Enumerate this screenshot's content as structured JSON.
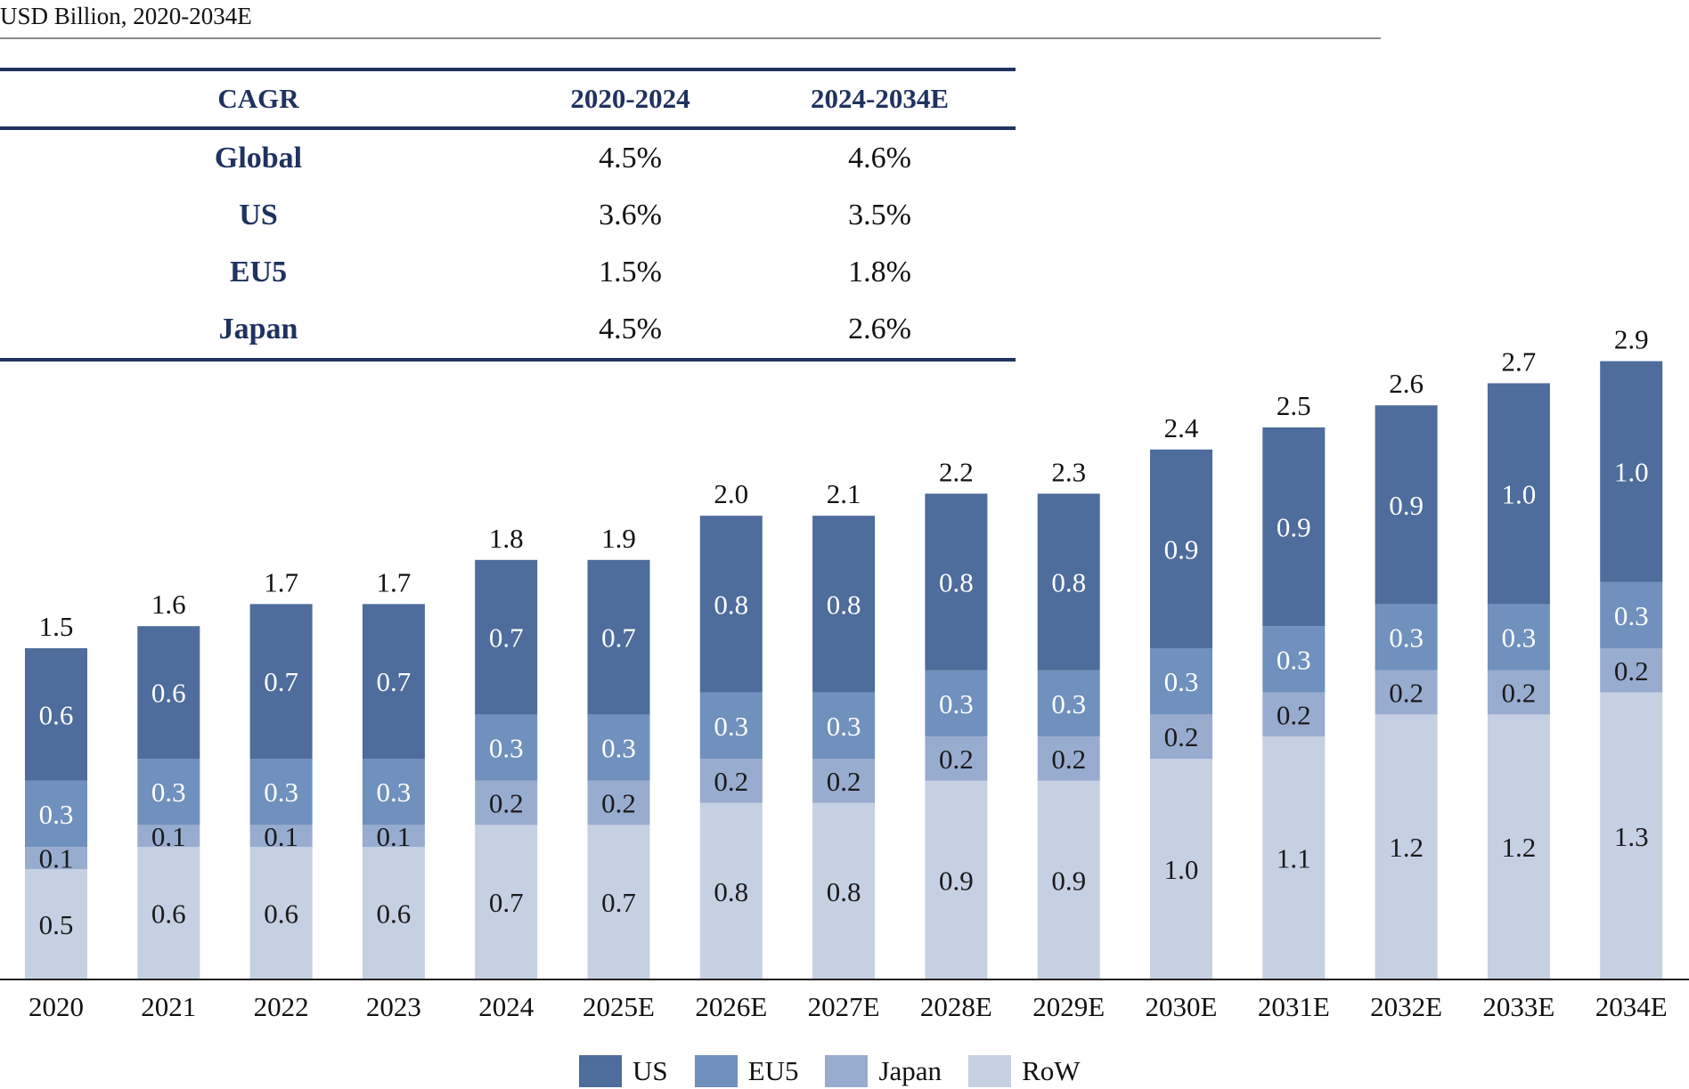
{
  "subtitle": "USD Billion, 2020-2034E",
  "cagr_table": {
    "headers": [
      "CAGR",
      "2020-2024",
      "2024-2034E"
    ],
    "rows": [
      {
        "label": "Global",
        "v1": "4.5%",
        "v2": "4.6%"
      },
      {
        "label": "US",
        "v1": "3.6%",
        "v2": "3.5%"
      },
      {
        "label": "EU5",
        "v1": "1.5%",
        "v2": "1.8%"
      },
      {
        "label": "Japan",
        "v1": "4.5%",
        "v2": "2.6%"
      }
    ]
  },
  "colors": {
    "US": "#4e6c9c",
    "EU5": "#7090bd",
    "Japan": "#98acd0",
    "RoW": "#c5d0e3",
    "table_accent": "#1f3260"
  },
  "chart_data": {
    "type": "bar",
    "stacked": true,
    "categories": [
      "2020",
      "2021",
      "2022",
      "2023",
      "2024",
      "2025E",
      "2026E",
      "2027E",
      "2028E",
      "2029E",
      "2030E",
      "2031E",
      "2032E",
      "2033E",
      "2034E"
    ],
    "series": [
      {
        "name": "RoW",
        "values": [
          0.5,
          0.6,
          0.6,
          0.6,
          0.7,
          0.7,
          0.8,
          0.8,
          0.9,
          0.9,
          1.0,
          1.1,
          1.2,
          1.2,
          1.3
        ]
      },
      {
        "name": "Japan",
        "values": [
          0.1,
          0.1,
          0.1,
          0.1,
          0.2,
          0.2,
          0.2,
          0.2,
          0.2,
          0.2,
          0.2,
          0.2,
          0.2,
          0.2,
          0.2
        ]
      },
      {
        "name": "EU5",
        "values": [
          0.3,
          0.3,
          0.3,
          0.3,
          0.3,
          0.3,
          0.3,
          0.3,
          0.3,
          0.3,
          0.3,
          0.3,
          0.3,
          0.3,
          0.3
        ]
      },
      {
        "name": "US",
        "values": [
          0.6,
          0.6,
          0.7,
          0.7,
          0.7,
          0.7,
          0.8,
          0.8,
          0.8,
          0.8,
          0.9,
          0.9,
          0.9,
          1.0,
          1.0
        ]
      }
    ],
    "totals": [
      "1.5",
      "1.6",
      "1.7",
      "1.7",
      "1.8",
      "1.9",
      "2.0",
      "2.1",
      "2.2",
      "2.3",
      "2.4",
      "2.5",
      "2.6",
      "2.7",
      "2.9"
    ],
    "legend": [
      "US",
      "EU5",
      "Japan",
      "RoW"
    ],
    "legend_position": "bottom-center",
    "title": "",
    "xlabel": "",
    "ylabel": "",
    "grid": false
  }
}
